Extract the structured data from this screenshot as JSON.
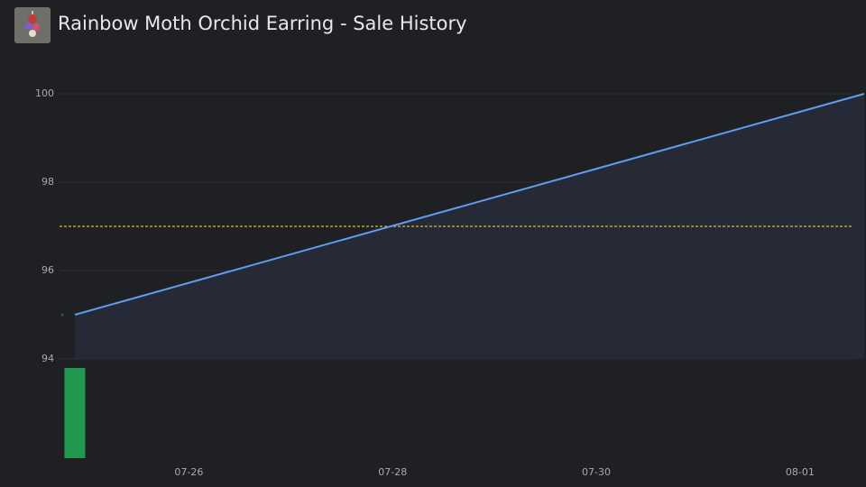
{
  "title": "Rainbow Moth Orchid Earring - Sale History",
  "chart_data": [
    {
      "type": "line",
      "x": [
        24.88,
        32.63
      ],
      "values": [
        95,
        100
      ],
      "color": "#5f9df0",
      "area_color": "#252a36",
      "xlim": [
        24.73,
        32.63
      ],
      "ylim": [
        94,
        100
      ],
      "yticks": [
        94,
        96,
        98,
        100
      ],
      "grid": true,
      "xticks": [
        {
          "value": 26,
          "label": "07-26"
        },
        {
          "value": 28,
          "label": "07-28"
        },
        {
          "value": 30,
          "label": "07-30"
        },
        {
          "value": 32,
          "label": "08-01"
        }
      ],
      "reference_line": {
        "value": 97,
        "color": "#e0b52a"
      }
    },
    {
      "type": "bar",
      "x": [
        24.88
      ],
      "values": [
        1
      ],
      "color": "#21984d",
      "xlim": [
        24.73,
        32.63
      ],
      "ylim": [
        0,
        1
      ]
    }
  ]
}
